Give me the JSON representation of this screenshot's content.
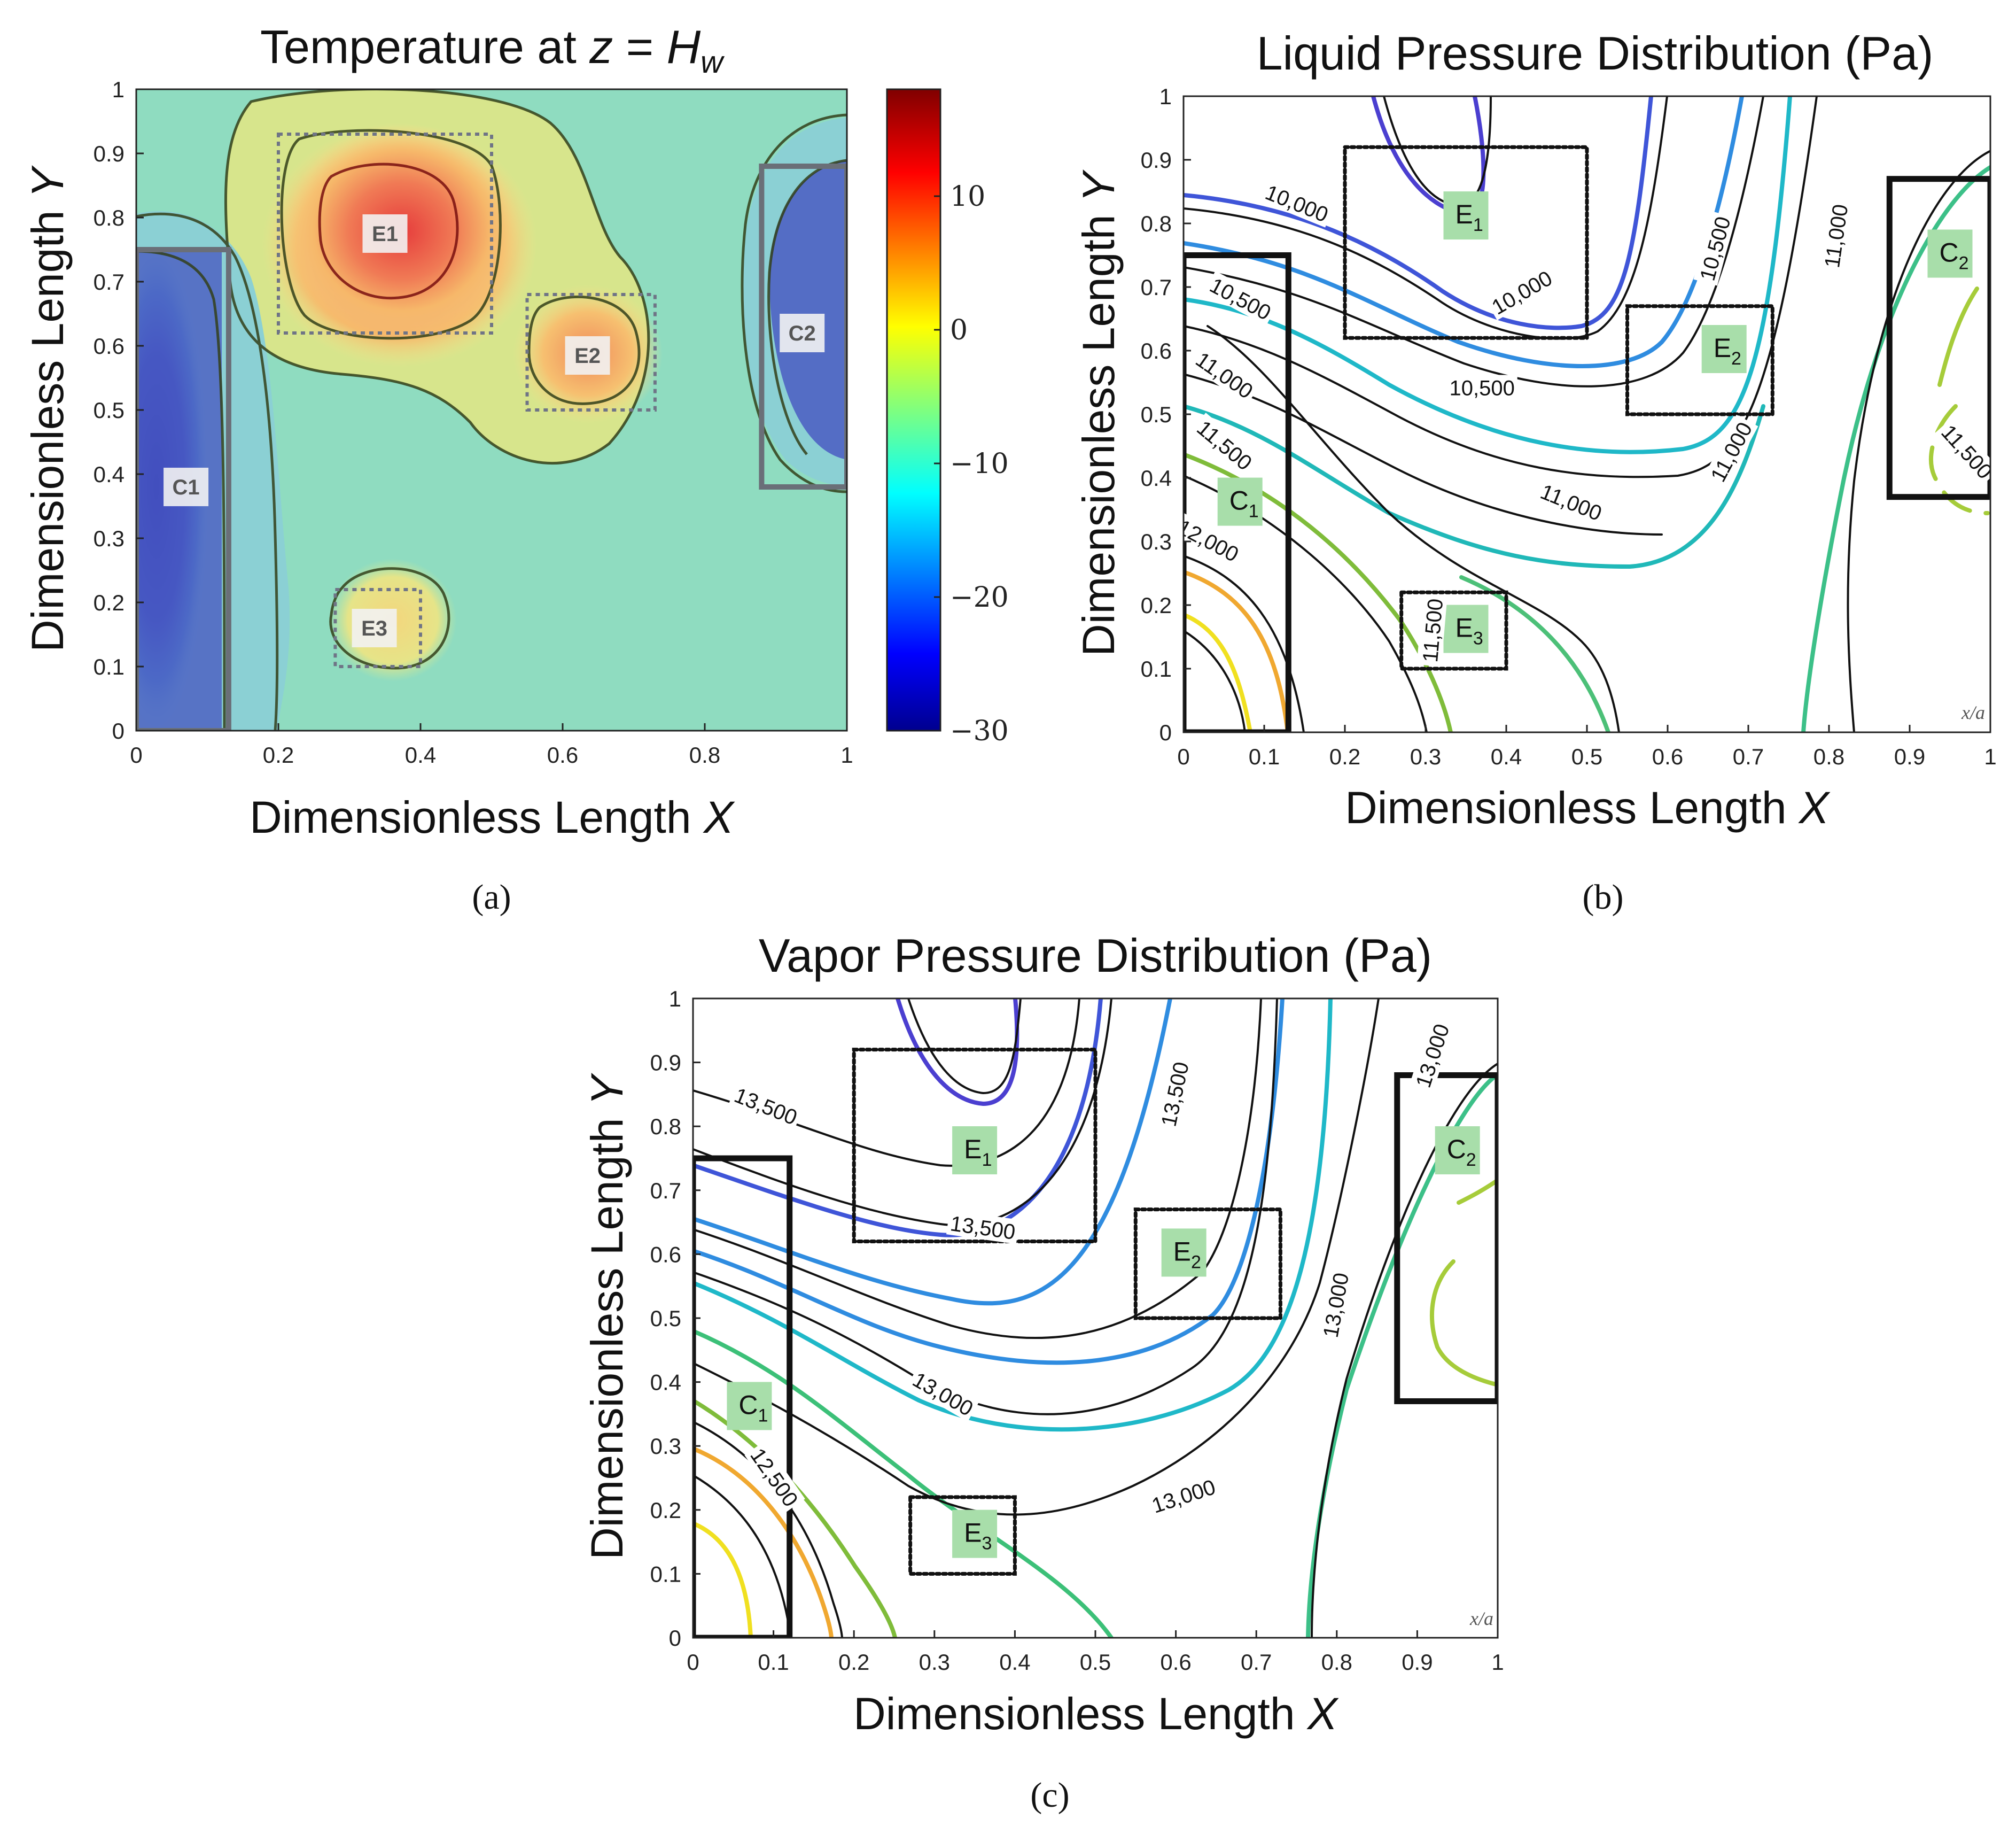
{
  "chart_data": [
    {
      "type": "heatmap",
      "id": "a",
      "panel_label": "(a)",
      "title": "Temperature at z = H_w",
      "title_parts": {
        "prefix": "Temperature at ",
        "z": "z",
        "eq": " = ",
        "H": "H",
        "sub": "w"
      },
      "xlabel": "Dimensionless Length",
      "xlabel_var": "X",
      "ylabel": "Dimensionless Length",
      "ylabel_var": "Y",
      "xlim": [
        0,
        1
      ],
      "ylim": [
        0,
        1
      ],
      "x_ticks": [
        "0",
        "0.2",
        "0.4",
        "0.6",
        "0.8",
        "1"
      ],
      "y_ticks": [
        "0",
        "0.1",
        "0.2",
        "0.3",
        "0.4",
        "0.5",
        "0.6",
        "0.7",
        "0.8",
        "0.9",
        "1"
      ],
      "colorbar": {
        "min": -30,
        "max": 18,
        "ticks": [
          10,
          0,
          -10,
          -20,
          -30
        ],
        "tick_labels": [
          "10",
          "0",
          "−10",
          "−20",
          "−30"
        ]
      },
      "regions": [
        {
          "name": "C1",
          "x": [
            0,
            0.13
          ],
          "y": [
            0,
            0.75
          ],
          "style": "solid"
        },
        {
          "name": "C2",
          "x": [
            0.88,
            1.0
          ],
          "y": [
            0.38,
            0.88
          ],
          "style": "solid"
        },
        {
          "name": "E1",
          "x": [
            0.2,
            0.5
          ],
          "y": [
            0.62,
            0.93
          ],
          "style": "dotted"
        },
        {
          "name": "E2",
          "x": [
            0.55,
            0.73
          ],
          "y": [
            0.5,
            0.68
          ],
          "style": "dotted"
        },
        {
          "name": "E3",
          "x": [
            0.28,
            0.4
          ],
          "y": [
            0.1,
            0.22
          ],
          "style": "dotted"
        }
      ],
      "hot_spots": [
        {
          "name": "E1",
          "x": 0.38,
          "y": 0.78,
          "temp": 15
        },
        {
          "name": "E2",
          "x": 0.64,
          "y": 0.58,
          "temp": 8
        },
        {
          "name": "E3",
          "x": 0.34,
          "y": 0.16,
          "temp": 2
        }
      ],
      "cold_spots": [
        {
          "name": "C1",
          "x": 0.04,
          "y": 0.38,
          "temp": -28
        },
        {
          "name": "C2",
          "x": 0.97,
          "y": 0.62,
          "temp": -26
        }
      ]
    },
    {
      "type": "line",
      "id": "b",
      "panel_label": "(b)",
      "title": "Liquid Pressure Distribution (Pa)",
      "xlabel": "Dimensionless Length",
      "xlabel_var": "X",
      "ylabel": "Dimensionless Length",
      "ylabel_var": "Y",
      "xlim": [
        0,
        1
      ],
      "ylim": [
        0,
        1
      ],
      "x_ticks": [
        "0",
        "0.1",
        "0.2",
        "0.3",
        "0.4",
        "0.5",
        "0.6",
        "0.7",
        "0.8",
        "0.9",
        "1"
      ],
      "y_ticks": [
        "0",
        "0.1",
        "0.2",
        "0.3",
        "0.4",
        "0.5",
        "0.6",
        "0.7",
        "0.8",
        "0.9",
        "1"
      ],
      "corner_note": "x/a",
      "contour_labels": [
        {
          "text": "10,000",
          "x": 0.14,
          "y": 0.83,
          "angle": 22
        },
        {
          "text": "10,000",
          "x": 0.42,
          "y": 0.69,
          "angle": -30
        },
        {
          "text": "10,500",
          "x": 0.07,
          "y": 0.68,
          "angle": 28
        },
        {
          "text": "10,500",
          "x": 0.37,
          "y": 0.54,
          "angle": 0
        },
        {
          "text": "10,500",
          "x": 0.66,
          "y": 0.76,
          "angle": -75
        },
        {
          "text": "11,000",
          "x": 0.05,
          "y": 0.56,
          "angle": 35
        },
        {
          "text": "11,000",
          "x": 0.48,
          "y": 0.36,
          "angle": 22
        },
        {
          "text": "11,000",
          "x": 0.68,
          "y": 0.44,
          "angle": -62
        },
        {
          "text": "11,000",
          "x": 0.81,
          "y": 0.78,
          "angle": -82
        },
        {
          "text": "11,500",
          "x": 0.05,
          "y": 0.45,
          "angle": 40
        },
        {
          "text": "11,500",
          "x": 0.31,
          "y": 0.16,
          "angle": -85
        },
        {
          "text": "11,500",
          "x": 0.97,
          "y": 0.44,
          "angle": 48
        },
        {
          "text": "12,000",
          "x": 0.03,
          "y": 0.3,
          "angle": 28
        }
      ],
      "regions": [
        {
          "name": "E",
          "sub": "1",
          "x": [
            0.2,
            0.5
          ],
          "y": [
            0.62,
            0.92
          ],
          "style": "dotted",
          "lx": 0.35,
          "ly": 0.81
        },
        {
          "name": "E",
          "sub": "2",
          "x": [
            0.55,
            0.73
          ],
          "y": [
            0.5,
            0.67
          ],
          "style": "dotted",
          "lx": 0.67,
          "ly": 0.6
        },
        {
          "name": "E",
          "sub": "3",
          "x": [
            0.27,
            0.4
          ],
          "y": [
            0.1,
            0.22
          ],
          "style": "dotted",
          "lx": 0.35,
          "ly": 0.16
        },
        {
          "name": "C",
          "sub": "1",
          "x": [
            0,
            0.13
          ],
          "y": [
            0,
            0.75
          ],
          "style": "solid",
          "lx": 0.07,
          "ly": 0.36
        },
        {
          "name": "C",
          "sub": "2",
          "x": [
            0.875,
            1.0
          ],
          "y": [
            0.37,
            0.87
          ],
          "style": "solid",
          "lx": 0.95,
          "ly": 0.75
        }
      ]
    },
    {
      "type": "line",
      "id": "c",
      "panel_label": "(c)",
      "title": "Vapor Pressure Distribution (Pa)",
      "xlabel": "Dimensionless Length",
      "xlabel_var": "X",
      "ylabel": "Dimensionless Length",
      "ylabel_var": "Y",
      "xlim": [
        0,
        1
      ],
      "ylim": [
        0,
        1
      ],
      "x_ticks": [
        "0",
        "0.1",
        "0.2",
        "0.3",
        "0.4",
        "0.5",
        "0.6",
        "0.7",
        "0.8",
        "0.9",
        "1"
      ],
      "y_ticks": [
        "0",
        "0.1",
        "0.2",
        "0.3",
        "0.4",
        "0.5",
        "0.6",
        "0.7",
        "0.8",
        "0.9",
        "1"
      ],
      "corner_note": "x/a",
      "contour_labels": [
        {
          "text": "13,500",
          "x": 0.09,
          "y": 0.83,
          "angle": 22
        },
        {
          "text": "13,500",
          "x": 0.36,
          "y": 0.64,
          "angle": 8
        },
        {
          "text": "13,500",
          "x": 0.6,
          "y": 0.85,
          "angle": -78
        },
        {
          "text": "13,000",
          "x": 0.31,
          "y": 0.38,
          "angle": 30
        },
        {
          "text": "13,000",
          "x": 0.61,
          "y": 0.22,
          "angle": -18
        },
        {
          "text": "13,000",
          "x": 0.8,
          "y": 0.52,
          "angle": -80
        },
        {
          "text": "13,000",
          "x": 0.92,
          "y": 0.91,
          "angle": -72
        },
        {
          "text": "12,500",
          "x": 0.1,
          "y": 0.25,
          "angle": 55
        }
      ],
      "regions": [
        {
          "name": "E",
          "sub": "1",
          "x": [
            0.2,
            0.5
          ],
          "y": [
            0.62,
            0.92
          ],
          "style": "dotted",
          "lx": 0.35,
          "ly": 0.76
        },
        {
          "name": "E",
          "sub": "2",
          "x": [
            0.55,
            0.73
          ],
          "y": [
            0.5,
            0.67
          ],
          "style": "dotted",
          "lx": 0.61,
          "ly": 0.6
        },
        {
          "name": "E",
          "sub": "3",
          "x": [
            0.27,
            0.4
          ],
          "y": [
            0.1,
            0.22
          ],
          "style": "dotted",
          "lx": 0.35,
          "ly": 0.16
        },
        {
          "name": "C",
          "sub": "1",
          "x": [
            0,
            0.12
          ],
          "y": [
            0,
            0.75
          ],
          "style": "solid",
          "lx": 0.07,
          "ly": 0.36
        },
        {
          "name": "C",
          "sub": "2",
          "x": [
            0.875,
            1.0
          ],
          "y": [
            0.37,
            0.88
          ],
          "style": "solid",
          "lx": 0.95,
          "ly": 0.76
        }
      ]
    }
  ]
}
